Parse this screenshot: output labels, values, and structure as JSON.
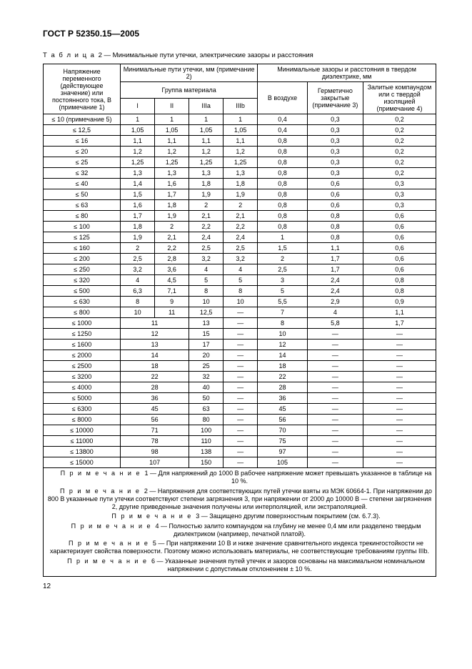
{
  "standard": "ГОСТ Р 52350.15—2005",
  "tableLabel": "Т а б л и ц а",
  "tableNum": "2",
  "tableCaption": "Минимальные пути утечки, электрические зазоры и расстояния",
  "header": {
    "voltage": "Напряжение переменного (действующее значение) или постоянного тока, В (примечание 1)",
    "creepage": "Минимальные пути утечки, мм (примечание 2)",
    "materialGroup": "Группа материала",
    "g1": "I",
    "g2": "II",
    "g3": "IIIa",
    "g4": "IIIb",
    "clearance": "Минимальные зазоры и расстояния в твердом диэлектрике, мм",
    "air": "В воздухе",
    "sealed": "Герметично закрытые (примечание 3)",
    "compound": "Залитые компаундом или с твердой изоляцией (примечание 4)"
  },
  "rows": [
    {
      "v": "≤ 10 (примечание 5)",
      "c1": "1",
      "c2": "1",
      "c3": "1",
      "c4": "1",
      "a": "0,4",
      "s": "0,3",
      "p": "0,2",
      "span": false
    },
    {
      "v": "≤ 12,5",
      "c1": "1,05",
      "c2": "1,05",
      "c3": "1,05",
      "c4": "1,05",
      "a": "0,4",
      "s": "0,3",
      "p": "0,2",
      "span": false
    },
    {
      "v": "≤ 16",
      "c1": "1,1",
      "c2": "1,1",
      "c3": "1,1",
      "c4": "1,1",
      "a": "0,8",
      "s": "0,3",
      "p": "0,2",
      "span": false
    },
    {
      "v": "≤ 20",
      "c1": "1,2",
      "c2": "1,2",
      "c3": "1,2",
      "c4": "1,2",
      "a": "0,8",
      "s": "0,3",
      "p": "0,2",
      "span": false
    },
    {
      "v": "≤ 25",
      "c1": "1,25",
      "c2": "1,25",
      "c3": "1,25",
      "c4": "1,25",
      "a": "0,8",
      "s": "0,3",
      "p": "0,2",
      "span": false
    },
    {
      "v": "≤ 32",
      "c1": "1,3",
      "c2": "1,3",
      "c3": "1,3",
      "c4": "1,3",
      "a": "0,8",
      "s": "0,3",
      "p": "0,2",
      "span": false
    },
    {
      "v": "≤ 40",
      "c1": "1,4",
      "c2": "1,6",
      "c3": "1,8",
      "c4": "1,8",
      "a": "0,8",
      "s": "0,6",
      "p": "0,3",
      "span": false
    },
    {
      "v": "≤ 50",
      "c1": "1,5",
      "c2": "1,7",
      "c3": "1,9",
      "c4": "1,9",
      "a": "0,8",
      "s": "0,6",
      "p": "0,3",
      "span": false
    },
    {
      "v": "≤ 63",
      "c1": "1,6",
      "c2": "1,8",
      "c3": "2",
      "c4": "2",
      "a": "0,8",
      "s": "0,6",
      "p": "0,3",
      "span": false
    },
    {
      "v": "≤ 80",
      "c1": "1,7",
      "c2": "1,9",
      "c3": "2,1",
      "c4": "2,1",
      "a": "0,8",
      "s": "0,8",
      "p": "0,6",
      "span": false
    },
    {
      "v": "≤ 100",
      "c1": "1,8",
      "c2": "2",
      "c3": "2,2",
      "c4": "2,2",
      "a": "0,8",
      "s": "0,8",
      "p": "0,6",
      "span": false
    },
    {
      "v": "≤ 125",
      "c1": "1,9",
      "c2": "2,1",
      "c3": "2,4",
      "c4": "2,4",
      "a": "1",
      "s": "0,8",
      "p": "0,6",
      "span": false
    },
    {
      "v": "≤ 160",
      "c1": "2",
      "c2": "2,2",
      "c3": "2,5",
      "c4": "2,5",
      "a": "1,5",
      "s": "1,1",
      "p": "0,6",
      "span": false
    },
    {
      "v": "≤ 200",
      "c1": "2,5",
      "c2": "2,8",
      "c3": "3,2",
      "c4": "3,2",
      "a": "2",
      "s": "1,7",
      "p": "0,6",
      "span": false
    },
    {
      "v": "≤ 250",
      "c1": "3,2",
      "c2": "3,6",
      "c3": "4",
      "c4": "4",
      "a": "2,5",
      "s": "1,7",
      "p": "0,6",
      "span": false
    },
    {
      "v": "≤ 320",
      "c1": "4",
      "c2": "4,5",
      "c3": "5",
      "c4": "5",
      "a": "3",
      "s": "2,4",
      "p": "0,8",
      "span": false
    },
    {
      "v": "≤ 500",
      "c1": "6,3",
      "c2": "7,1",
      "c3": "8",
      "c4": "8",
      "a": "5",
      "s": "2,4",
      "p": "0,8",
      "span": false
    },
    {
      "v": "≤ 630",
      "c1": "8",
      "c2": "9",
      "c3": "10",
      "c4": "10",
      "a": "5,5",
      "s": "2,9",
      "p": "0,9",
      "span": false
    },
    {
      "v": "≤ 800",
      "c1": "10",
      "c2": "11",
      "c3": "12,5",
      "c4": "—",
      "a": "7",
      "s": "4",
      "p": "1,1",
      "span": false
    },
    {
      "v": "≤ 1000",
      "m12": "11",
      "c3": "13",
      "c4": "—",
      "a": "8",
      "s": "5,8",
      "p": "1,7",
      "span": true
    },
    {
      "v": "≤ 1250",
      "m12": "12",
      "c3": "15",
      "c4": "—",
      "a": "10",
      "s": "—",
      "p": "—",
      "span": true
    },
    {
      "v": "≤ 1600",
      "m12": "13",
      "c3": "17",
      "c4": "—",
      "a": "12",
      "s": "—",
      "p": "—",
      "span": true
    },
    {
      "v": "≤ 2000",
      "m12": "14",
      "c3": "20",
      "c4": "—",
      "a": "14",
      "s": "—",
      "p": "—",
      "span": true
    },
    {
      "v": "≤ 2500",
      "m12": "18",
      "c3": "25",
      "c4": "—",
      "a": "18",
      "s": "—",
      "p": "—",
      "span": true
    },
    {
      "v": "≤ 3200",
      "m12": "22",
      "c3": "32",
      "c4": "—",
      "a": "22",
      "s": "—",
      "p": "—",
      "span": true
    },
    {
      "v": "≤ 4000",
      "m12": "28",
      "c3": "40",
      "c4": "—",
      "a": "28",
      "s": "—",
      "p": "—",
      "span": true
    },
    {
      "v": "≤ 5000",
      "m12": "36",
      "c3": "50",
      "c4": "—",
      "a": "36",
      "s": "—",
      "p": "—",
      "span": true
    },
    {
      "v": "≤ 6300",
      "m12": "45",
      "c3": "63",
      "c4": "—",
      "a": "45",
      "s": "—",
      "p": "—",
      "span": true
    },
    {
      "v": "≤ 8000",
      "m12": "56",
      "c3": "80",
      "c4": "—",
      "a": "56",
      "s": "—",
      "p": "—",
      "span": true
    },
    {
      "v": "≤ 10000",
      "m12": "71",
      "c3": "100",
      "c4": "—",
      "a": "70",
      "s": "—",
      "p": "—",
      "span": true
    },
    {
      "v": "≤ 11000",
      "m12": "78",
      "c3": "110",
      "c4": "—",
      "a": "75",
      "s": "—",
      "p": "—",
      "span": true
    },
    {
      "v": "≤ 13800",
      "m12": "98",
      "c3": "138",
      "c4": "—",
      "a": "97",
      "s": "—",
      "p": "—",
      "span": true
    },
    {
      "v": "≤ 15000",
      "m12": "107",
      "c3": "150",
      "c4": "—",
      "a": "105",
      "s": "—",
      "p": "—",
      "span": true
    }
  ],
  "notes": {
    "label": "П р и м е ч а н и е",
    "n1": "1 — Для напряжений до 1000 В рабочее напряжение может превышать указанное в таблице на 10 %.",
    "n2": "2 — Напряжения для соответствующих путей утечки взяты из МЭК 60664-1. При напряжении до 800 В указанные пути утечки соответствуют степени загрязнения 3, при напряжении от 2000 до 10000 В — степени загрязнения 2, другие приведенные значения получены или интерполяцией, или экстраполяцией.",
    "n3": "3 — Защищено другим поверхностным покрытием (см. 6.7.3).",
    "n4": "4 — Полностью залито компаундом на глубину не менее 0,4 мм или разделено твердым диэлектриком (например, печатной платой).",
    "n5": "5 — При напряжении 10 В и ниже значение сравнительного индекса трекингостойкости не характеризует свойства поверхности. Поэтому можно использовать материалы, не соответствующие требованиям группы IIIb.",
    "n6": "6 — Указанные значения путей утечек и зазоров основаны на максимальном номинальном напряжении с допустимым отклонением ± 10 %."
  },
  "pageNum": "12"
}
